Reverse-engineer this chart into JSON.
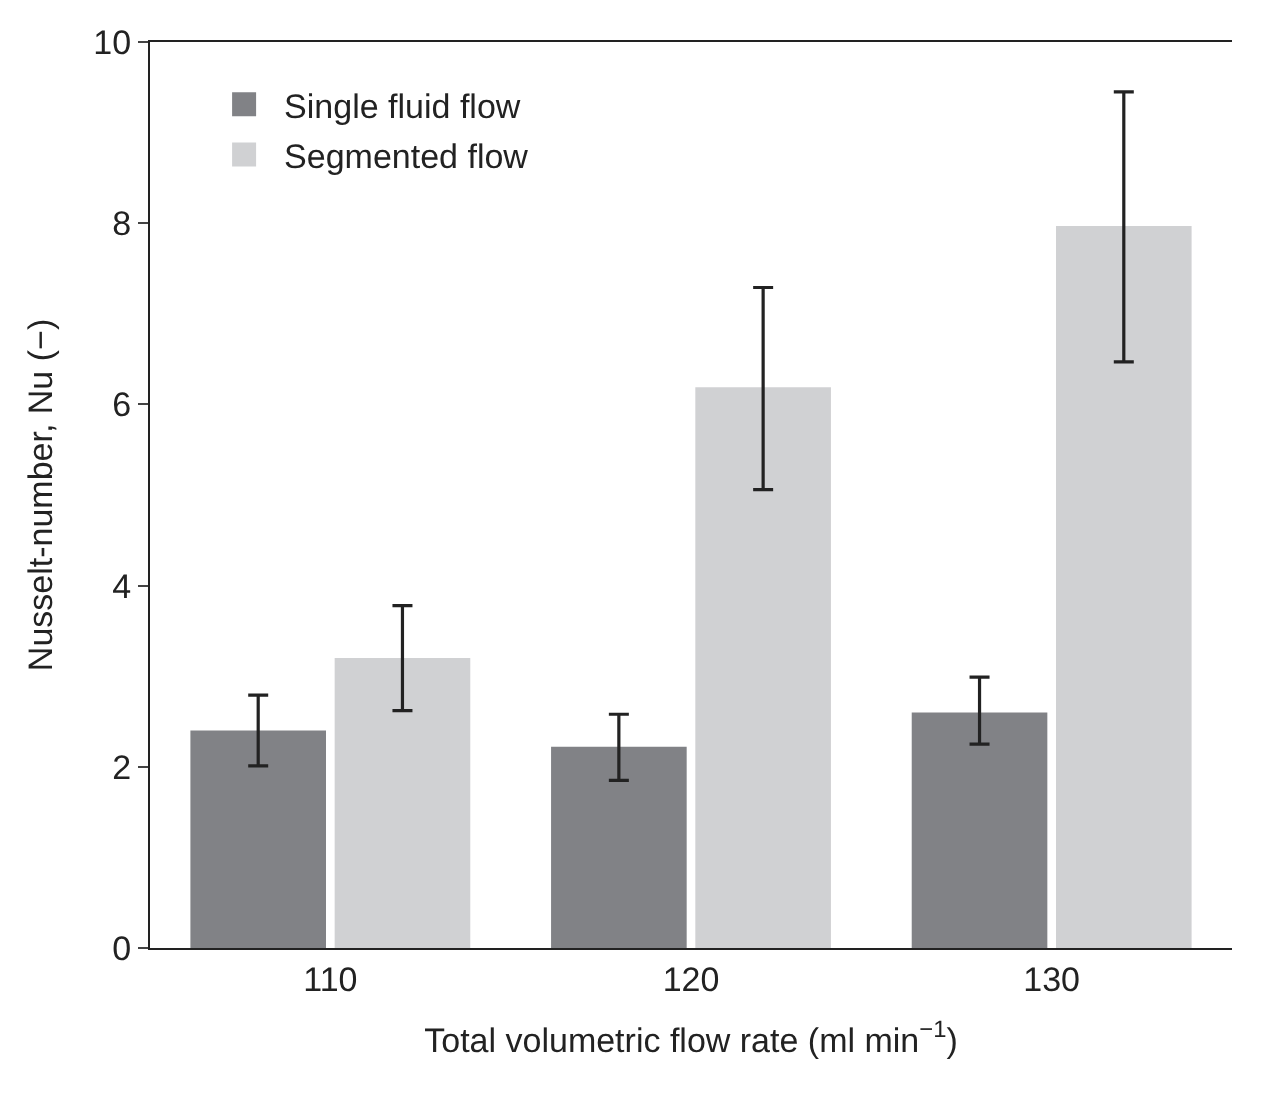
{
  "chart_data": {
    "type": "bar",
    "xlabel": "Total volumetric flow rate (ml min$^{−1}$)",
    "ylabel": "Nusselt-number, Nu (−)",
    "categories": [
      "110",
      "120",
      "130"
    ],
    "series": [
      {
        "name": "Single fluid flow",
        "color": "#818286",
        "values": [
          2.4,
          2.22,
          2.6
        ],
        "errors": [
          [
            2.01,
            2.79
          ],
          [
            1.85,
            2.58
          ],
          [
            2.25,
            2.99
          ]
        ]
      },
      {
        "name": "Segmented flow",
        "color": "#d0d1d3",
        "values": [
          3.2,
          6.19,
          7.97
        ],
        "errors": [
          [
            2.62,
            3.78
          ],
          [
            5.06,
            7.29
          ],
          [
            6.47,
            9.45
          ]
        ]
      }
    ],
    "ylim": [
      0,
      10
    ],
    "yticks": [
      0,
      2,
      4,
      6,
      8,
      10
    ],
    "legend": "top left"
  }
}
